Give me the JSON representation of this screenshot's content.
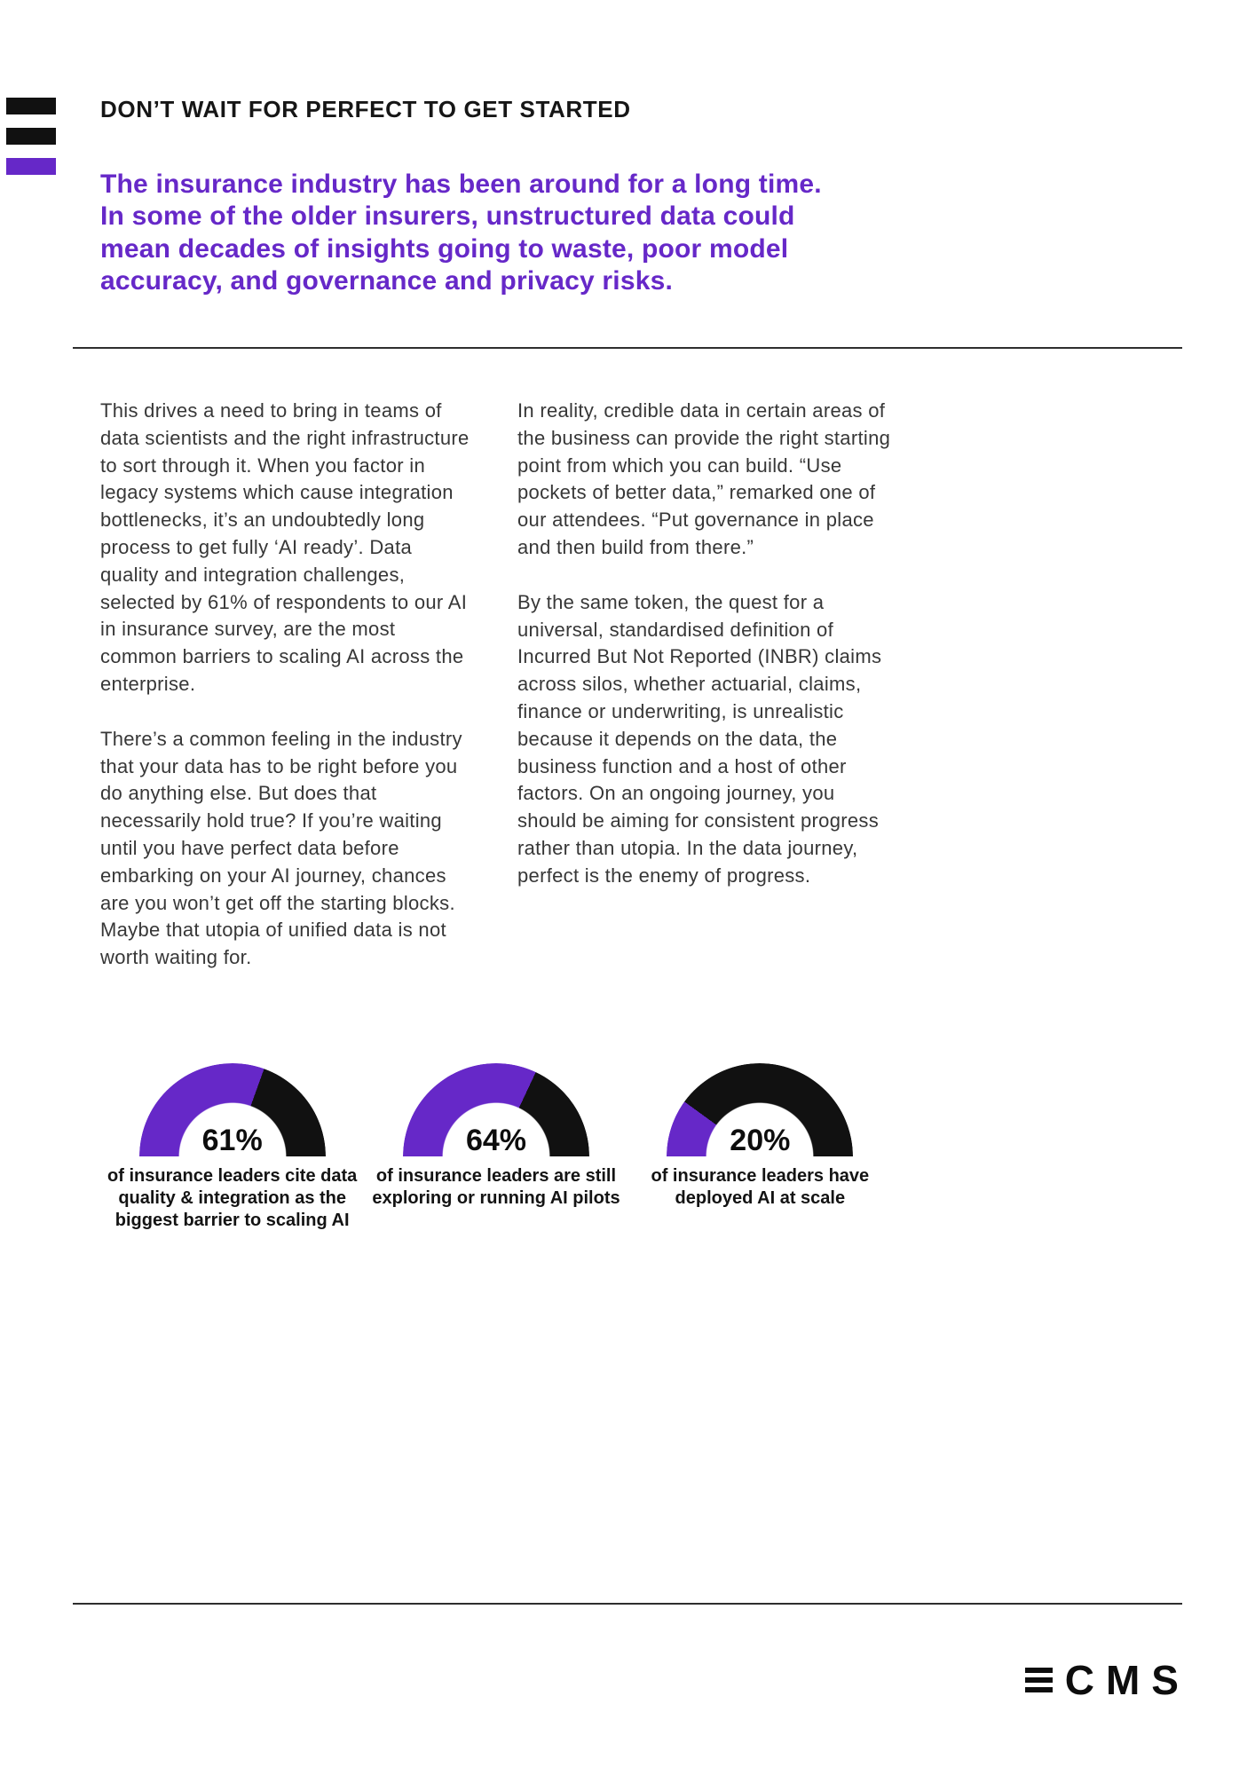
{
  "colors": {
    "accent": "#6628c8",
    "ink": "#111111"
  },
  "header": {
    "kicker": "DON’T WAIT FOR PERFECT TO GET STARTED",
    "intro": "The insurance industry has been around for a long time. In some of the older insurers, unstructured data could mean decades of insights going to waste, poor model accuracy, and governance and privacy risks."
  },
  "body": {
    "left_column": {
      "paragraph_1": "This drives a need to bring in teams of data scientists and the right infrastructure to sort through it. When you factor in legacy systems which cause integration bottlenecks, it’s an undoubtedly long process to get fully ‘AI ready’. Data quality and integration challenges, selected by 61% of respondents to our AI in insurance survey, are the most common barriers to scaling AI across the enterprise.",
      "paragraph_2": "There’s a common feeling in the industry that your data has to be right before you do anything else. But does that necessarily hold true? If you’re waiting until you have perfect data before embarking on your AI journey, chances are you won’t get off the starting blocks. Maybe that utopia of unified data is not worth waiting for."
    },
    "right_column": {
      "paragraph_1": "In reality, credible data in certain areas of the business can provide the right starting point from which you can build. “Use pockets of better data,” remarked one of our attendees. “Put governance in place and then build from there.”",
      "paragraph_2": "By the same token, the quest for a universal, standardised definition of Incurred But Not Reported (INBR) claims across silos, whether actuarial, claims, finance or underwriting, is unrealistic because it depends on the data, the business function and a host of other factors. On an ongoing journey, you should be aiming for consistent progress rather than utopia. In the data journey, perfect is the enemy of progress."
    }
  },
  "charts": {
    "type": "gauge",
    "items": [
      {
        "value": 61,
        "label": "61%",
        "caption": "of insurance leaders cite data quality & integration as the biggest barrier to scaling AI"
      },
      {
        "value": 64,
        "label": "64%",
        "caption": "of insurance leaders are still exploring or running AI pilots"
      },
      {
        "value": 20,
        "label": "20%",
        "caption": "of insurance leaders have deployed AI at scale"
      }
    ],
    "colors": {
      "filled": "#6628c8",
      "remainder": "#111111"
    }
  },
  "footer": {
    "logo_text": "CMS"
  }
}
